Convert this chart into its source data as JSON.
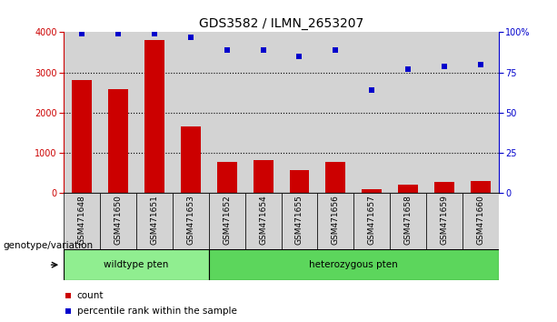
{
  "title": "GDS3582 / ILMN_2653207",
  "categories": [
    "GSM471648",
    "GSM471650",
    "GSM471651",
    "GSM471653",
    "GSM471652",
    "GSM471654",
    "GSM471655",
    "GSM471656",
    "GSM471657",
    "GSM471658",
    "GSM471659",
    "GSM471660"
  ],
  "bar_values": [
    2800,
    2580,
    3800,
    1650,
    780,
    820,
    570,
    780,
    100,
    220,
    280,
    300
  ],
  "scatter_values": [
    99,
    99,
    99,
    97,
    89,
    89,
    85,
    89,
    64,
    77,
    79,
    80
  ],
  "wildtype_count": 4,
  "heterozygous_count": 8,
  "wildtype_label": "wildtype pten",
  "heterozygous_label": "heterozygous pten",
  "genotype_label": "genotype/variation",
  "bar_color": "#cc0000",
  "scatter_color": "#0000cc",
  "ylim_left": [
    0,
    4000
  ],
  "ylim_right": [
    0,
    100
  ],
  "yticks_left": [
    0,
    1000,
    2000,
    3000,
    4000
  ],
  "yticks_right": [
    0,
    25,
    50,
    75,
    100
  ],
  "yticklabels_right": [
    "0",
    "25",
    "50",
    "75",
    "100%"
  ],
  "legend_count_label": "count",
  "legend_percentile_label": "percentile rank within the sample",
  "bg_wildtype": "#90ee90",
  "bg_heterozygous": "#5cd65c",
  "bar_bg_color": "#d3d3d3",
  "title_fontsize": 10,
  "tick_fontsize": 7,
  "label_fontsize": 6.5,
  "geno_fontsize": 7.5,
  "legend_fontsize": 7.5
}
